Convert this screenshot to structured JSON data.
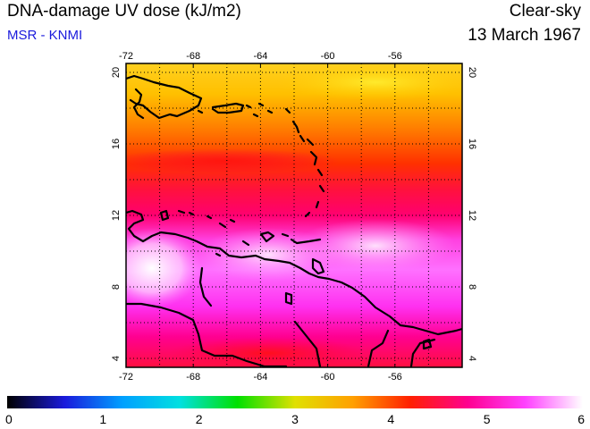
{
  "header": {
    "title": "DNA-damage UV dose (kJ/m2)",
    "source": "MSR - KNMI",
    "condition": "Clear-sky",
    "date": "13 March 1967"
  },
  "map": {
    "lon_ticks": [
      "-72",
      "-68",
      "-64",
      "-60",
      "-56"
    ],
    "lat_ticks": [
      "20",
      "16",
      "12",
      "8",
      "4"
    ],
    "lon_range": [
      -72,
      -52
    ],
    "lat_range": [
      3.5,
      20.5
    ]
  },
  "colorbar": {
    "labels": [
      "0",
      "1",
      "2",
      "3",
      "4",
      "5",
      "6"
    ],
    "range": [
      0,
      6
    ],
    "stops": [
      "#000000",
      "#1a1adc",
      "#00a0ff",
      "#00e0e0",
      "#00e000",
      "#e0e000",
      "#ffa000",
      "#ff2000",
      "#ff0090",
      "#ff40ff",
      "#ffffff"
    ]
  }
}
